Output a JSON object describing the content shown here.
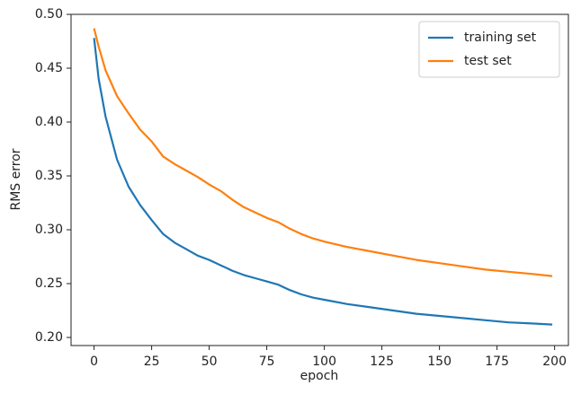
{
  "chart_data": {
    "type": "line",
    "x_label": "epoch",
    "y_label": "RMS error",
    "x": [
      0,
      2,
      5,
      10,
      15,
      20,
      25,
      30,
      35,
      40,
      45,
      50,
      55,
      60,
      65,
      70,
      75,
      80,
      85,
      90,
      95,
      100,
      110,
      120,
      130,
      140,
      150,
      160,
      170,
      180,
      190,
      199
    ],
    "series": [
      {
        "name": "training set",
        "color": "#1f77b4",
        "values": [
          0.478,
          0.44,
          0.405,
          0.365,
          0.34,
          0.323,
          0.309,
          0.296,
          0.288,
          0.282,
          0.276,
          0.272,
          0.267,
          0.262,
          0.258,
          0.255,
          0.252,
          0.249,
          0.244,
          0.24,
          0.237,
          0.235,
          0.231,
          0.228,
          0.225,
          0.222,
          0.22,
          0.218,
          0.216,
          0.214,
          0.213,
          0.212
        ]
      },
      {
        "name": "test set",
        "color": "#ff7f0e",
        "values": [
          0.487,
          0.47,
          0.448,
          0.424,
          0.408,
          0.393,
          0.382,
          0.368,
          0.361,
          0.355,
          0.349,
          0.342,
          0.336,
          0.328,
          0.321,
          0.316,
          0.311,
          0.307,
          0.301,
          0.296,
          0.292,
          0.289,
          0.284,
          0.28,
          0.276,
          0.272,
          0.269,
          0.266,
          0.263,
          0.261,
          0.259,
          0.257
        ]
      }
    ],
    "xlim": [
      -10,
      206
    ],
    "ylim": [
      0.1925,
      0.5
    ],
    "xticks": [
      0,
      25,
      50,
      75,
      100,
      125,
      150,
      175,
      200
    ],
    "yticks": [
      {
        "value": 0.2,
        "label": "0.20"
      },
      0.25,
      {
        "value": 0.3,
        "label": "0.30"
      },
      0.35,
      {
        "value": 0.4,
        "label": "0.40"
      },
      0.45,
      {
        "value": 0.5,
        "label": "0.50"
      }
    ],
    "legend": "upper right"
  }
}
